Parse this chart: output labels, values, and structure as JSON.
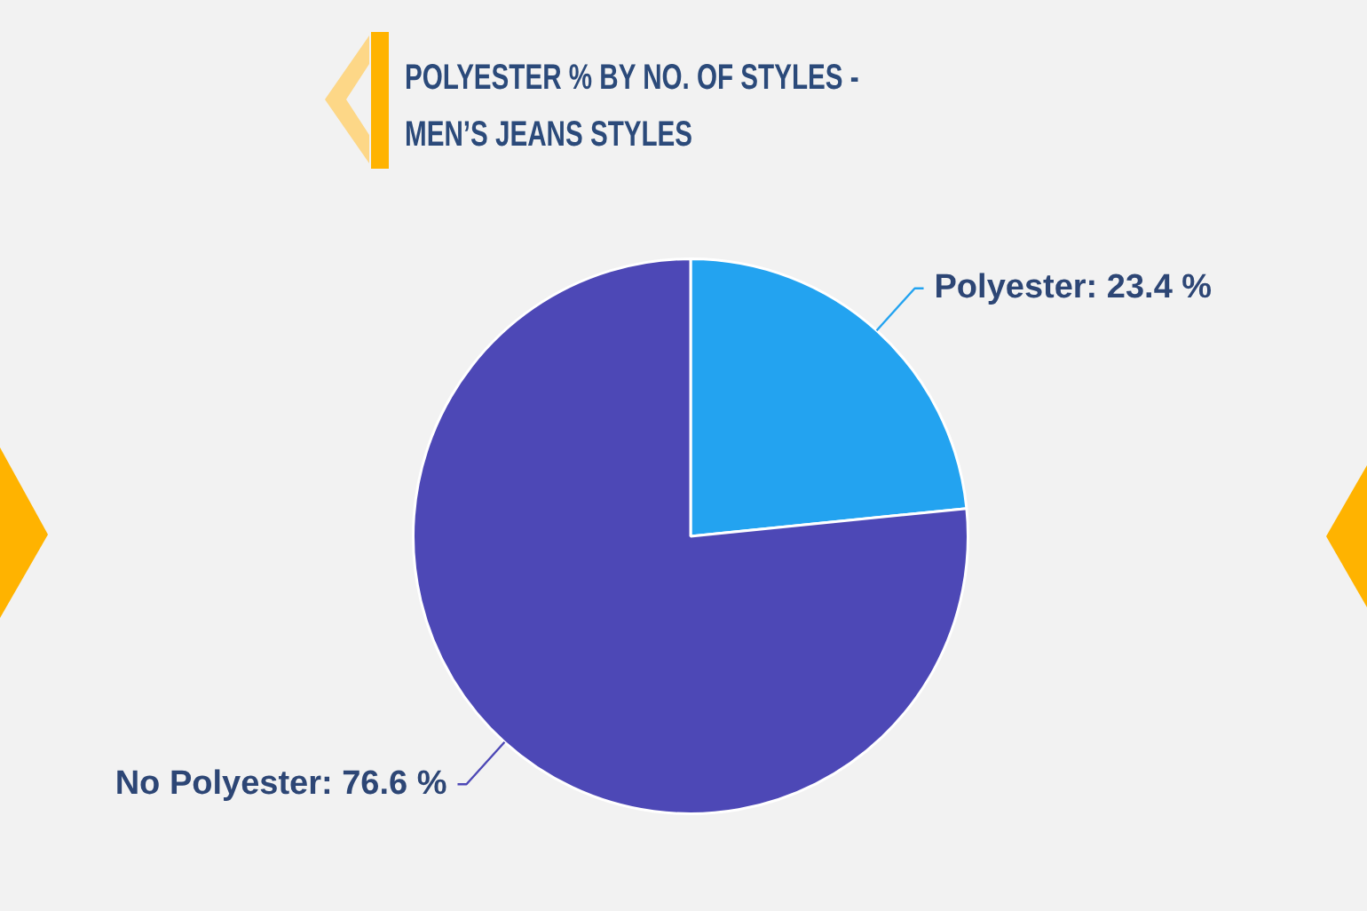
{
  "chart_data": {
    "type": "pie",
    "title": "POLYESTER % BY NO. OF STYLES - MEN’S JEANS STYLES",
    "categories": [
      "Polyester",
      "No Polyester"
    ],
    "values": [
      23.4,
      76.6
    ],
    "colors": [
      "#23a3f0",
      "#4d48b6"
    ],
    "value_labels": [
      ": 23.4 %",
      ": 76.6 %"
    ],
    "legend": false
  }
}
